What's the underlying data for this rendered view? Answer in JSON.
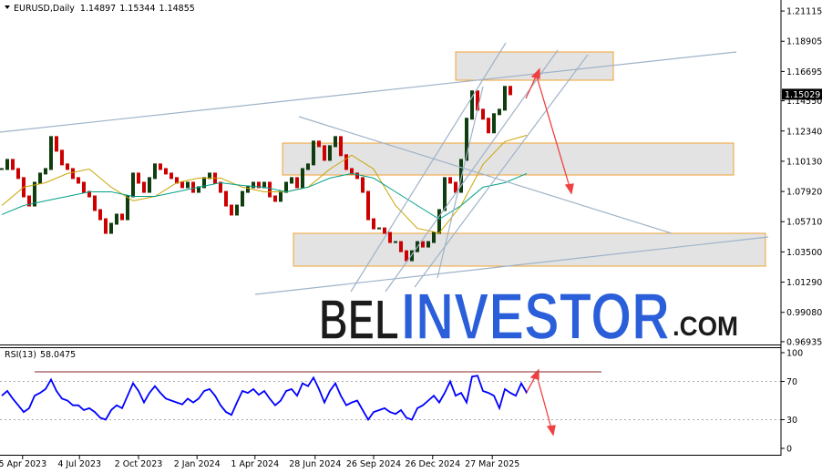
{
  "chart_data": [
    {
      "type": "candlestick",
      "title": "EURUSD,Daily",
      "ohlc": [
        1.14897,
        1.15344,
        1.14855
      ],
      "values": [
        1.0956,
        1.1023,
        1.0956,
        1.089,
        1.0756,
        1.0689,
        1.0856,
        1.0923,
        1.0956,
        1.119,
        1.109,
        1.099,
        1.0956,
        1.089,
        1.0856,
        1.0789,
        1.0756,
        1.0656,
        1.0589,
        1.0489,
        1.0556,
        1.0623,
        1.0589,
        1.0756,
        1.0923,
        1.0856,
        1.0789,
        1.089,
        1.099,
        1.0956,
        1.0923,
        1.089,
        1.0856,
        1.0823,
        1.0856,
        1.0789,
        1.0823,
        1.089,
        1.0923,
        1.0856,
        1.0789,
        1.0689,
        1.0623,
        1.0689,
        1.0789,
        1.0823,
        1.0856,
        1.0823,
        1.0856,
        1.0756,
        1.0723,
        1.0789,
        1.0856,
        1.089,
        1.0823,
        1.0956,
        1.099,
        1.1157,
        1.1123,
        1.1023,
        1.1123,
        1.119,
        1.1057,
        1.0956,
        1.0923,
        1.089,
        1.0789,
        1.0589,
        1.0522,
        1.0522,
        1.0489,
        1.0422,
        1.0422,
        1.0355,
        1.0289,
        1.0355,
        1.0422,
        1.0389,
        1.0422,
        1.0489,
        1.0656,
        1.089,
        1.0856,
        1.0789,
        1.1023,
        1.1324,
        1.1524,
        1.139,
        1.1324,
        1.1224,
        1.1357,
        1.139,
        1.1557,
        1.15029
      ],
      "up_color": "#0f3d0f",
      "down_color": "#cc0000",
      "overlays": [
        {
          "color": "#c9a400",
          "x": [
            0,
            4,
            8,
            12,
            16,
            20,
            24,
            28,
            32,
            36,
            40,
            44,
            48,
            52,
            56,
            60,
            64,
            68,
            72,
            76,
            80,
            84,
            88,
            92,
            96
          ],
          "values": [
            1.0689,
            1.0823,
            1.0856,
            1.0923,
            1.0956,
            1.0823,
            1.0723,
            1.0756,
            1.0856,
            1.089,
            1.089,
            1.0823,
            1.0789,
            1.0789,
            1.0823,
            1.0956,
            1.1057,
            1.0956,
            1.0689,
            1.0522,
            1.0489,
            1.0689,
            1.099,
            1.1157,
            1.1203
          ]
        },
        {
          "color": "#00a08a",
          "x": [
            0,
            4,
            8,
            12,
            16,
            20,
            24,
            28,
            32,
            36,
            40,
            44,
            48,
            52,
            56,
            60,
            64,
            68,
            72,
            76,
            80,
            84,
            88,
            92,
            96
          ],
          "values": [
            1.0623,
            1.0689,
            1.0723,
            1.0756,
            1.0789,
            1.0789,
            1.0756,
            1.0756,
            1.0789,
            1.0823,
            1.0856,
            1.0836,
            1.0823,
            1.0789,
            1.0823,
            1.089,
            1.0923,
            1.089,
            1.0789,
            1.0689,
            1.0589,
            1.0689,
            1.0823,
            1.0856,
            1.0923
          ]
        }
      ],
      "ylim": [
        0.9673,
        1.2192
      ],
      "yticks": [
        1.21115,
        1.18905,
        1.16695,
        {
          "value": 1.1455,
          "label": "1.14550"
        },
        {
          "value": 1.1234,
          "label": "1.12340"
        },
        {
          "value": 1.1013,
          "label": "1.10130"
        },
        {
          "value": 1.0792,
          "label": "1.07920"
        },
        {
          "value": 1.0571,
          "label": "1.05710"
        },
        {
          "value": 1.035,
          "label": "1.03500"
        },
        {
          "value": 1.0129,
          "label": "1.01290"
        },
        {
          "value": 0.9908,
          "label": "0.99080"
        },
        0.96935
      ],
      "xlim": [
        -0.33,
        142.5
      ],
      "xticks": [
        {
          "value": 3.8,
          "label": "5 Apr 2023"
        },
        {
          "value": 14.2,
          "label": "4 Jul 2023"
        },
        {
          "value": 25,
          "label": "2 Oct 2023"
        },
        {
          "value": 35.7,
          "label": "2 Jan 2024"
        },
        {
          "value": 46.3,
          "label": "1 Apr 2024"
        },
        {
          "value": 57.3,
          "label": "28 Jun 2024"
        },
        {
          "value": 68,
          "label": "26 Sep 2024"
        },
        {
          "value": 78.8,
          "label": "26 Dec 2024"
        },
        {
          "value": 89.7,
          "label": "27 Mar 2025"
        }
      ],
      "watermark": [
        "BEL",
        "INVESTOR",
        ".COM"
      ]
    },
    {
      "type": "line",
      "title": "RSI(13)",
      "color": "#0000ff",
      "values": [
        55,
        60,
        52,
        45,
        38,
        42,
        55,
        58,
        62,
        72,
        60,
        52,
        50,
        45,
        45,
        40,
        42,
        38,
        32,
        30,
        40,
        45,
        42,
        55,
        68,
        60,
        48,
        58,
        65,
        58,
        52,
        50,
        48,
        46,
        52,
        48,
        52,
        60,
        62,
        55,
        45,
        38,
        35,
        48,
        60,
        58,
        62,
        56,
        60,
        52,
        45,
        50,
        60,
        62,
        55,
        68,
        65,
        74,
        62,
        48,
        60,
        68,
        55,
        45,
        48,
        50,
        40,
        30,
        38,
        40,
        42,
        38,
        36,
        40,
        32,
        30,
        42,
        45,
        50,
        55,
        48,
        58,
        70,
        55,
        58,
        48,
        75,
        76,
        60,
        58,
        55,
        42,
        62,
        58,
        55,
        68,
        58.0475
      ],
      "ylim": [
        -6.7,
        105.7
      ],
      "yticks": [
        0,
        30,
        70,
        100
      ],
      "grid": "dotted"
    }
  ]
}
